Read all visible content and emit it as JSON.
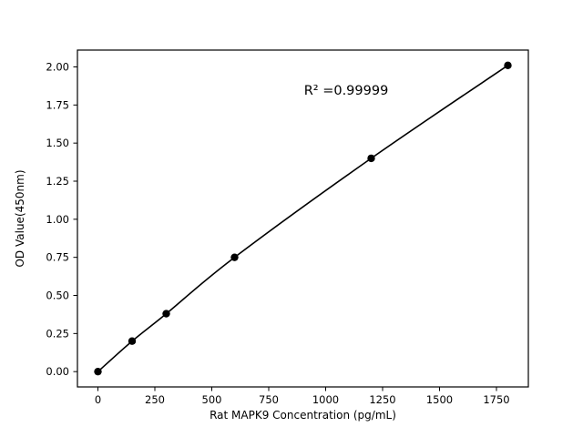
{
  "chart_data": {
    "type": "scatter",
    "title": "",
    "xlabel": "Rat MAPK9 Concentration (pg/mL)",
    "ylabel": "OD Value(450nm)",
    "x": [
      0,
      150,
      300,
      600,
      1200,
      1800
    ],
    "y": [
      0.0,
      0.2,
      0.38,
      0.75,
      1.4,
      2.01
    ],
    "xlim": [
      -90,
      1890
    ],
    "ylim": [
      -0.1005,
      2.1105
    ],
    "x_ticks": [
      0,
      250,
      500,
      750,
      1000,
      1250,
      1500,
      1750
    ],
    "y_ticks": [
      "0.00",
      "0.25",
      "0.50",
      "0.75",
      "1.00",
      "1.25",
      "1.50",
      "1.75",
      "2.00"
    ],
    "annotation": {
      "text": "R² =0.99999",
      "x": 1090,
      "y": 1.85
    },
    "line_color": "#000000",
    "marker_color": "#000000",
    "background_color": "#ffffff",
    "grid": false,
    "legend": null
  }
}
